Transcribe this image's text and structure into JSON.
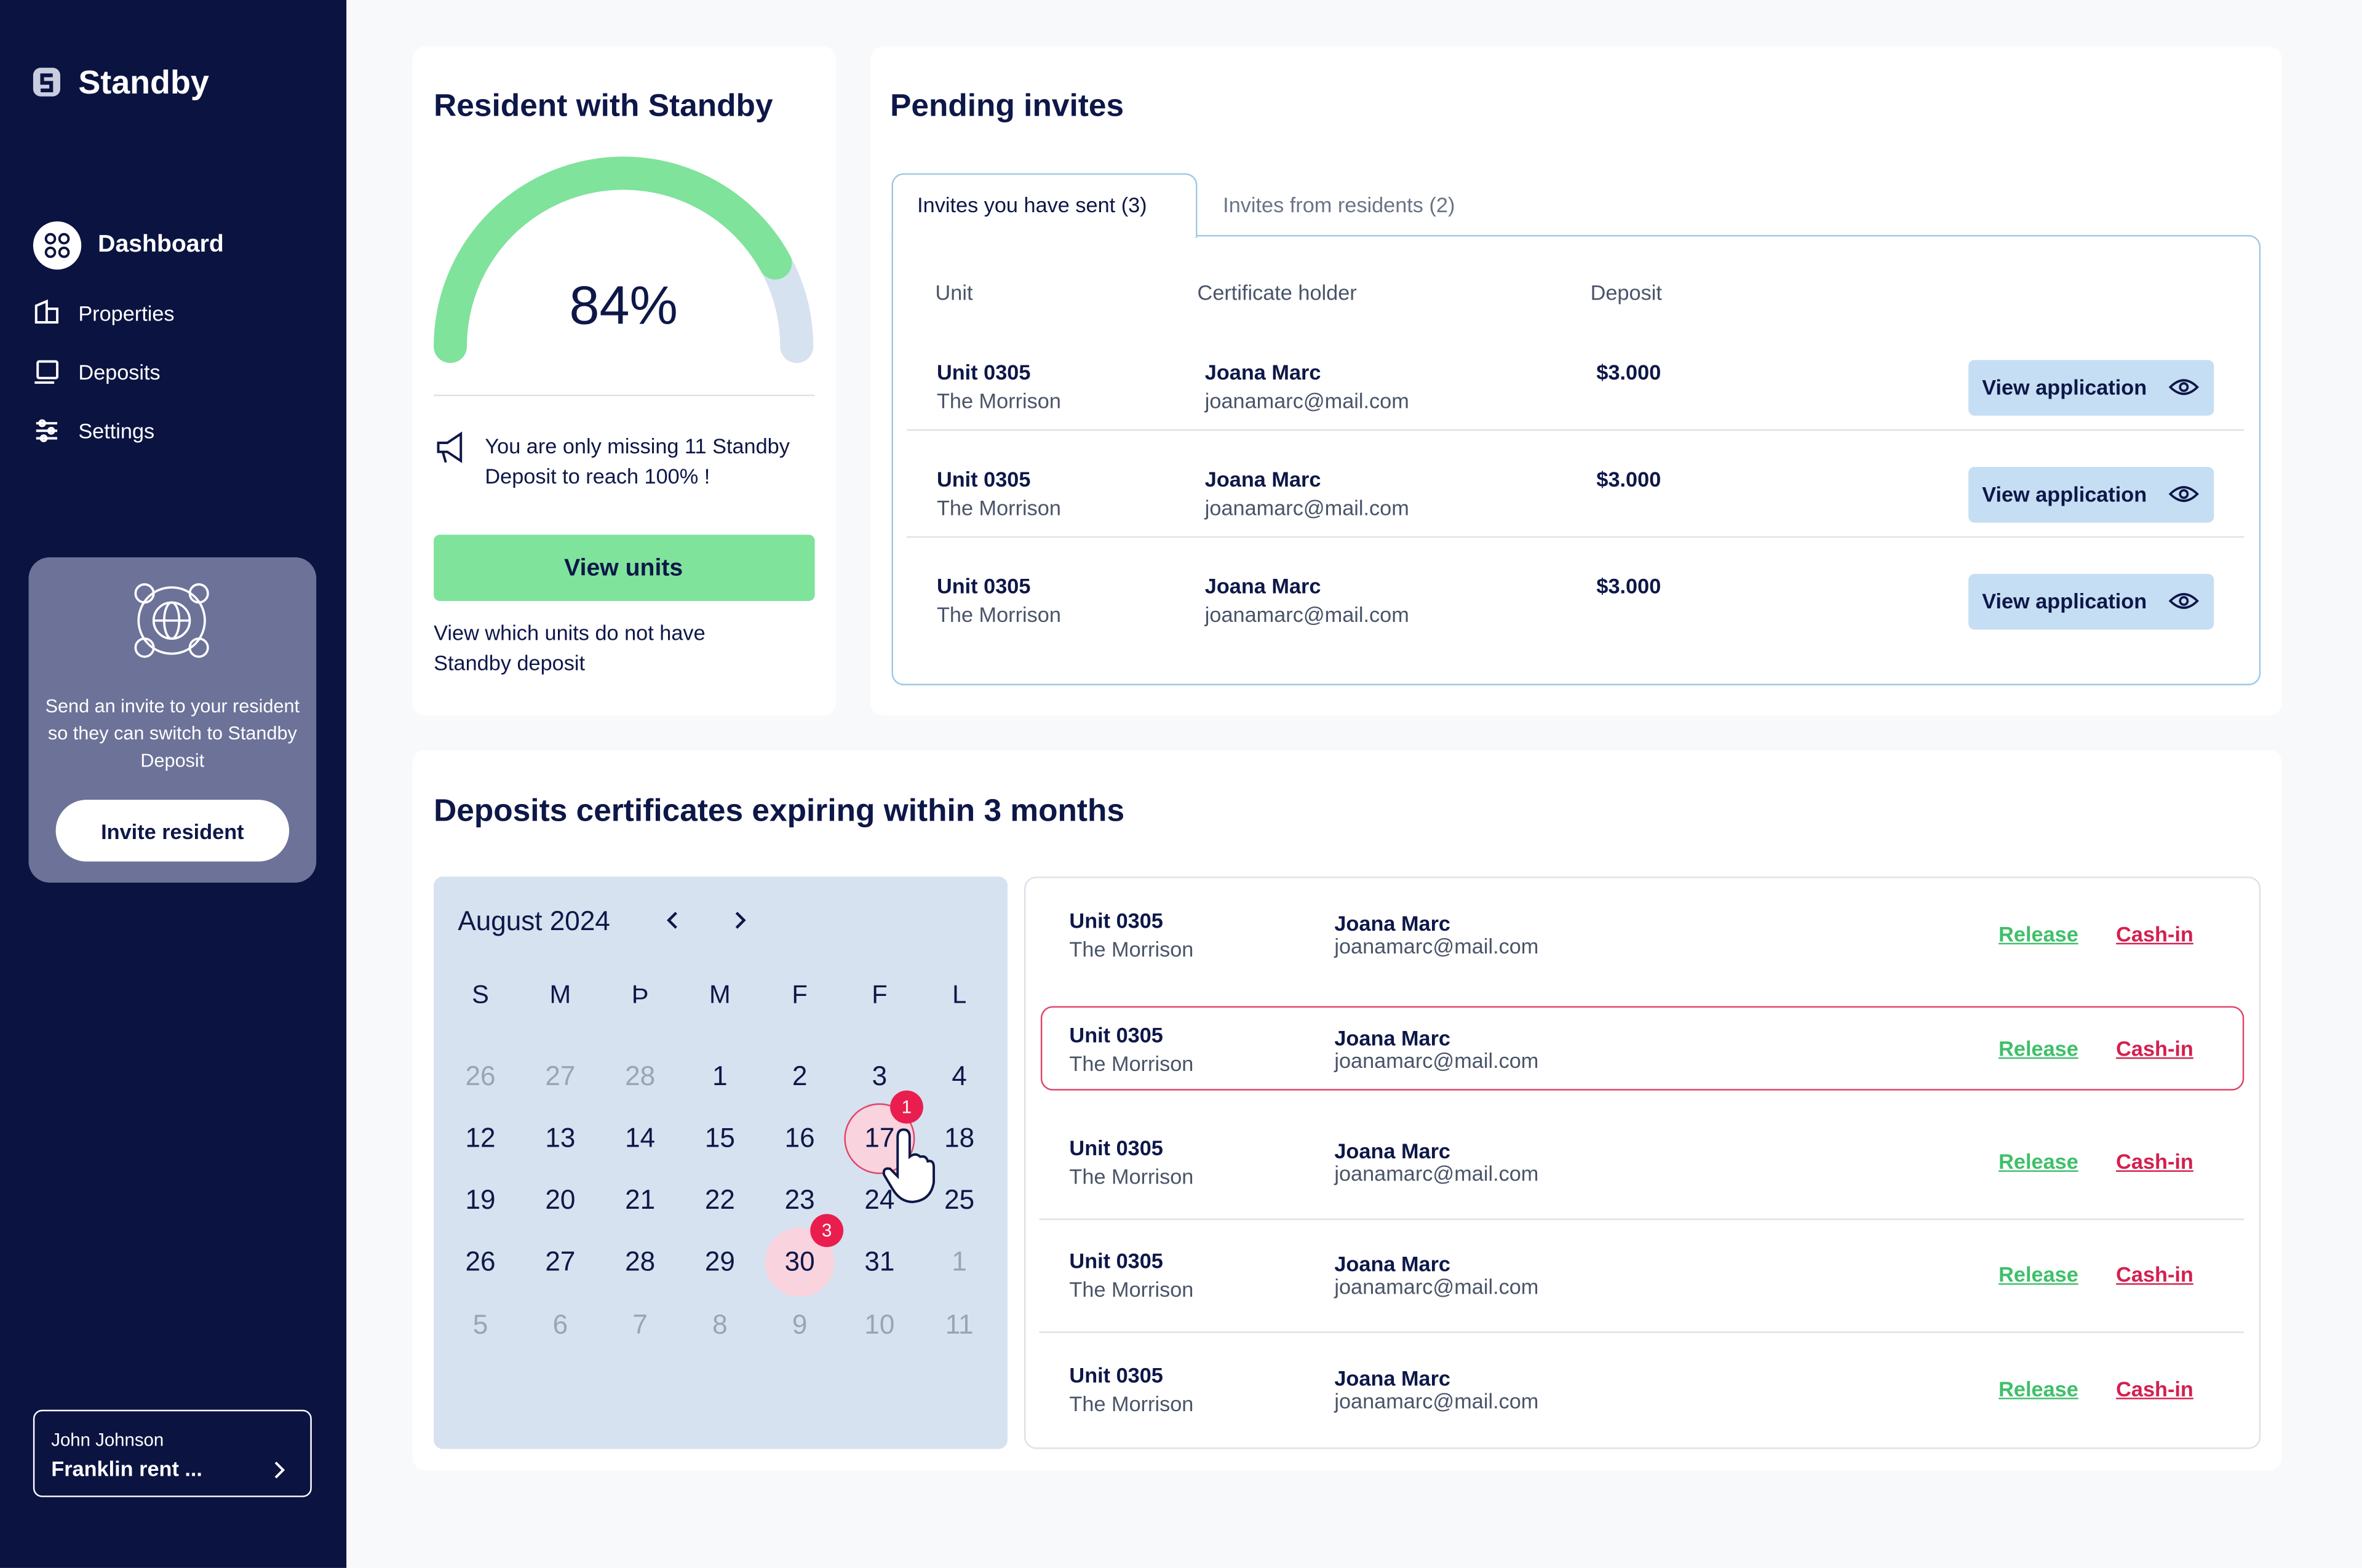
{
  "sidebar": {
    "brand": "Standby",
    "nav": [
      "Dashboard",
      "Properties",
      "Deposits",
      "Settings"
    ],
    "invite_card": {
      "text": "Send an invite to your resident so they can switch to Standby Deposit",
      "button": "Invite resident"
    },
    "user": {
      "name": "John Johnson",
      "account": "Franklin rent ..."
    }
  },
  "resident_card": {
    "title": "Resident with Standby",
    "gauge": {
      "value": 84,
      "label": "84%"
    },
    "note": "You are only missing 11 Standby Deposit to reach 100% !",
    "button": "View units",
    "footnote": "View which units do not have Standby deposit"
  },
  "pending": {
    "title": "Pending invites",
    "tabs": [
      "Invites you have sent (3)",
      "Invites from residents (2)"
    ],
    "columns": [
      "Unit",
      "Certificate holder",
      "Deposit"
    ],
    "rows": [
      {
        "unit": "Unit 0305",
        "property": "The Morrison",
        "holder": "Joana Marc",
        "email": "joanamarc@mail.com",
        "deposit": "$3.000",
        "action": "View application"
      },
      {
        "unit": "Unit 0305",
        "property": "The Morrison",
        "holder": "Joana Marc",
        "email": "joanamarc@mail.com",
        "deposit": "$3.000",
        "action": "View application"
      },
      {
        "unit": "Unit 0305",
        "property": "The Morrison",
        "holder": "Joana Marc",
        "email": "joanamarc@mail.com",
        "deposit": "$3.000",
        "action": "View application"
      }
    ]
  },
  "expiring": {
    "title": "Deposits certificates expiring within 3 months",
    "calendar": {
      "month": "August 2024",
      "weekdays": [
        "S",
        "M",
        "Þ",
        "M",
        "F",
        "F",
        "L"
      ],
      "weeks": [
        [
          26,
          27,
          28,
          1,
          2,
          3,
          4
        ],
        [
          12,
          13,
          14,
          15,
          16,
          {
            "day": 17,
            "events": 1
          },
          18
        ],
        [
          19,
          20,
          21,
          22,
          23,
          24,
          25
        ],
        [
          26,
          27,
          28,
          29,
          {
            "day": 30,
            "events": 3
          },
          31,
          1
        ],
        [
          5,
          6,
          7,
          8,
          9,
          10,
          11
        ]
      ]
    },
    "rows": [
      {
        "unit": "Unit 0305",
        "property": "The Morrison",
        "holder": "Joana Marc",
        "email": "joanamarc@mail.com",
        "release": "Release",
        "cashin": "Cash-in"
      },
      {
        "unit": "Unit 0305",
        "property": "The Morrison",
        "holder": "Joana Marc",
        "email": "joanamarc@mail.com",
        "release": "Release",
        "cashin": "Cash-in",
        "highlighted": true
      },
      {
        "unit": "Unit 0305",
        "property": "The Morrison",
        "holder": "Joana Marc",
        "email": "joanamarc@mail.com",
        "release": "Release",
        "cashin": "Cash-in"
      },
      {
        "unit": "Unit 0305",
        "property": "The Morrison",
        "holder": "Joana Marc",
        "email": "joanamarc@mail.com",
        "release": "Release",
        "cashin": "Cash-in"
      },
      {
        "unit": "Unit 0305",
        "property": "The Morrison",
        "holder": "Joana Marc",
        "email": "joanamarc@mail.com",
        "release": "Release",
        "cashin": "Cash-in"
      }
    ]
  }
}
